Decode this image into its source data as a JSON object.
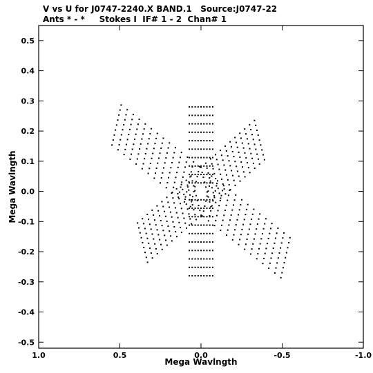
{
  "chart_data": {
    "type": "scatter",
    "title": "V vs U for J0747-2240.X BAND.1   Source:J0747-22",
    "subtitle": "Ants * - *     Stokes I  IF# 1 - 2  Chan# 1",
    "xlabel": "Mega Wavlngth",
    "ylabel": "Mega Wavlngth",
    "xlim": [
      1.0,
      -1.0
    ],
    "ylim": [
      -0.52,
      0.55
    ],
    "xticks": [
      "1.0",
      "0.5",
      "0.0",
      "-0.5",
      "-1.0"
    ],
    "xtick_values": [
      1.0,
      0.5,
      0.0,
      -0.5,
      -1.0
    ],
    "yticks": [
      "0.5",
      "0.4",
      "0.3",
      "0.2",
      "0.1",
      "0.0",
      "-0.1",
      "-0.2",
      "-0.3",
      "-0.4",
      "-0.5"
    ],
    "ytick_values": [
      0.5,
      0.4,
      0.3,
      0.2,
      0.1,
      0.0,
      -0.1,
      -0.2,
      -0.3,
      -0.4,
      -0.5
    ],
    "grid": false,
    "marker_color": "#000000",
    "uv_tracks": {
      "description_of_tracks": "symmetric u-v coverage; arm directions with point samples",
      "arms": [
        {
          "du": 0.52,
          "dv": 0.22,
          "n": 14
        },
        {
          "du": -0.52,
          "dv": -0.22,
          "n": 14
        },
        {
          "du": 0.36,
          "dv": -0.17,
          "n": 12
        },
        {
          "du": -0.36,
          "dv": 0.17,
          "n": 12
        },
        {
          "du": 0.0,
          "dv": 0.28,
          "n": 10
        },
        {
          "du": 0.0,
          "dv": -0.28,
          "n": 10
        }
      ],
      "offsets": [
        -0.6,
        -0.45,
        -0.3,
        -0.15,
        0.15,
        0.3,
        0.45,
        0.6
      ]
    }
  }
}
